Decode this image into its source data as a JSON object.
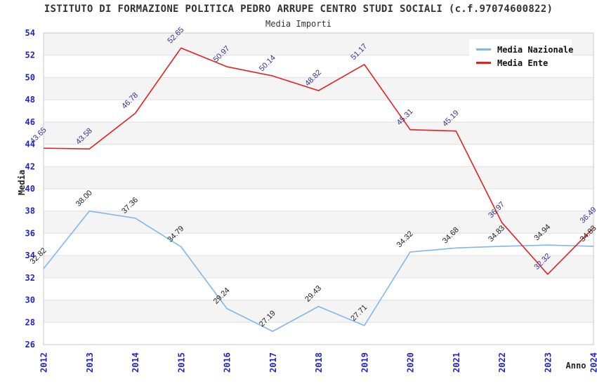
{
  "title": "ISTITUTO DI FORMAZIONE POLITICA PEDRO ARRUPE CENTRO STUDI SOCIALI (c.f.97074600822)",
  "subtitle": "Media Importi",
  "colors": {
    "tick_label": "#2222CC",
    "grid_line": "#E0E0E0",
    "stripe_gray": "#F4F4F4",
    "plot_border": "#C9C9C9",
    "text": "#333333"
  },
  "legend": {
    "position": "top-right",
    "items": [
      {
        "label": "Media Nazionale",
        "color": "#7FB8EA"
      },
      {
        "label": "Media Ente",
        "color": "#E62020"
      }
    ]
  },
  "chart_data": {
    "type": "line",
    "title": "ISTITUTO DI FORMAZIONE POLITICA PEDRO ARRUPE CENTRO STUDI SOCIALI (c.f.97074600822)",
    "subtitle": "Media Importi",
    "x": [
      "2012",
      "2013",
      "2014",
      "2015",
      "2016",
      "2017",
      "2018",
      "2019",
      "2020",
      "2021",
      "2022",
      "2023",
      "2024"
    ],
    "series": [
      {
        "name": "Media Nazionale",
        "color": "#7FB8EA",
        "label_color": "#222222",
        "values": [
          32.82,
          38.0,
          37.36,
          34.79,
          29.24,
          27.19,
          29.43,
          27.71,
          34.32,
          34.68,
          34.83,
          34.94,
          34.83
        ],
        "labels": [
          "32.82",
          "38.00",
          "37.36",
          "34.79",
          "29.24",
          "27.19",
          "29.43",
          "27.71",
          "34.32",
          "34.68",
          "34.83",
          "34.94",
          "34.83"
        ]
      },
      {
        "name": "Media Ente",
        "color": "#E62020",
        "label_color": "#333399",
        "values": [
          43.65,
          43.58,
          46.78,
          52.65,
          50.97,
          50.14,
          48.82,
          51.17,
          45.31,
          45.19,
          36.97,
          32.32,
          36.49
        ],
        "labels": [
          "43.65",
          "43.58",
          "46.78",
          "52.65",
          "50.97",
          "50.14",
          "48.82",
          "51.17",
          "45.31",
          "45.19",
          "36.97",
          "32.32",
          "36.49"
        ]
      }
    ],
    "xlabel": "Anno",
    "ylabel": "Media",
    "ylim": [
      26,
      54
    ],
    "ytick_step": 2,
    "grid": true,
    "background_stripes": true,
    "legend_position": "top-right"
  }
}
